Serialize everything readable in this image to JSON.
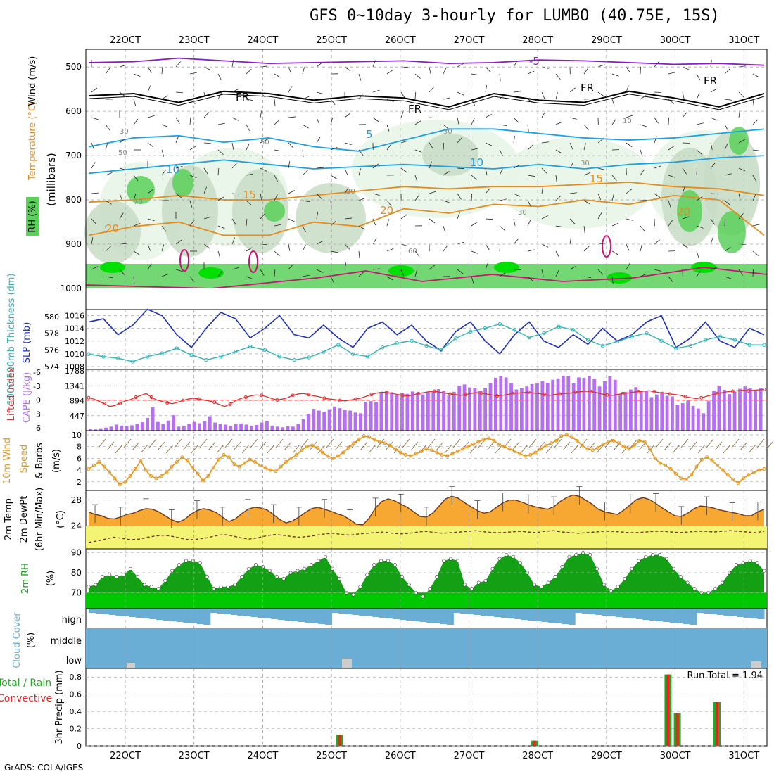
{
  "title": "GFS 0~10day 3-hourly for LUMBO (40.75E, 15S)",
  "credit": "GrADS: COLA/IGES",
  "colors": {
    "rh_light": "#e8f4e6",
    "rh_mid": "#c8dcc6",
    "rh_dark": "#a8bca8",
    "rh_green": "#5bd05b",
    "rh_bright": "#00e000",
    "temp_purple": "#8a19c8",
    "temp_blue": "#1aa0e6",
    "temp_orange": "#e68a1a",
    "temp_magenta": "#d0107a",
    "slp": "#1e2fc0",
    "thickness": "#30b4b4",
    "lifted": "#e03030",
    "cape": "#b56ff0",
    "wind": "#e6961e",
    "temp_fill": "#f6a832",
    "dew_fill": "#f4f474",
    "rh2m": "#14a014",
    "cloud": "#6aaed6",
    "rain": "#22aa22",
    "convective": "#ee2222"
  },
  "chart_data": [
    {
      "type": "heatmap",
      "panel": "upper_air",
      "ylabel": "(millibars)",
      "legend_labels": [
        "RH (%)",
        "Temperature (°C)",
        "Wind (m/s)"
      ],
      "yticks": [
        500,
        600,
        700,
        800,
        900,
        1000
      ],
      "x_ticks": [
        "22OCT",
        "23OCT",
        "24OCT",
        "25OCT",
        "26OCT",
        "27OCT",
        "28OCT",
        "29OCT",
        "30OCT",
        "31OCT"
      ],
      "contour_labels": [
        "-5",
        "FR",
        "FR",
        "FR",
        "FR",
        "5",
        "10",
        "10",
        "15",
        "15",
        "20",
        "20",
        "20"
      ],
      "rh_labels": [
        "30",
        "50",
        "50",
        "30",
        "30",
        "30",
        "70",
        "30",
        "60",
        "10"
      ],
      "isotherms": [
        {
          "name": "-5",
          "pressure": [
            490,
            488,
            480,
            486,
            492,
            490,
            488,
            486,
            492,
            490,
            484,
            486,
            490,
            494,
            492,
            496
          ]
        },
        {
          "name": "FR",
          "pressure": [
            565,
            560,
            580,
            555,
            560,
            575,
            565,
            570,
            590,
            560,
            575,
            580,
            555,
            570,
            590,
            560
          ]
        },
        {
          "name": "5",
          "pressure": [
            680,
            660,
            655,
            670,
            660,
            680,
            690,
            665,
            640,
            640,
            650,
            660,
            665,
            660,
            650,
            640
          ]
        },
        {
          "name": "10",
          "pressure": [
            740,
            730,
            720,
            710,
            720,
            730,
            725,
            720,
            725,
            730,
            720,
            730,
            720,
            715,
            705,
            700
          ]
        },
        {
          "name": "15",
          "pressure": [
            805,
            800,
            790,
            800,
            800,
            790,
            780,
            770,
            775,
            770,
            770,
            765,
            760,
            770,
            775,
            790
          ]
        },
        {
          "name": "20",
          "pressure": [
            880,
            860,
            850,
            880,
            880,
            850,
            860,
            820,
            830,
            810,
            815,
            800,
            810,
            790,
            800,
            880
          ]
        }
      ]
    },
    {
      "type": "line",
      "panel": "slp_thickness",
      "ylabel_left": "1000-500mb Thickness (dm)",
      "ylabel_right": "SLP (mb)",
      "y_left_ticks": [
        574,
        576,
        578,
        580
      ],
      "y_right_ticks": [
        1008,
        1010,
        1012,
        1014,
        1016
      ],
      "series": [
        {
          "name": "SLP (mb)",
          "axis": "right",
          "values": [
            1015,
            1015.5,
            1013,
            1014.5,
            1017,
            1016,
            1013,
            1011,
            1014,
            1016.5,
            1015.5,
            1012.5,
            1014,
            1016,
            1013,
            1012.5,
            1014.5,
            1012.5,
            1011,
            1014,
            1015,
            1013,
            1014.5,
            1012,
            1010.5,
            1013.5,
            1015,
            1012,
            1010,
            1013,
            1015,
            1012,
            1011,
            1013,
            1011.5,
            1014,
            1012,
            1013,
            1015,
            1016,
            1011,
            1012.5,
            1015,
            1012,
            1011,
            1014,
            1013
          ]
        },
        {
          "name": "Thickness (dm)",
          "axis": "left",
          "values": [
            575.5,
            575.2,
            575,
            574.6,
            575.2,
            575.6,
            576.2,
            575.4,
            574.8,
            575.2,
            575.8,
            576.4,
            576,
            575.2,
            574.8,
            575.1,
            575.8,
            576.6,
            575.5,
            575.2,
            576.3,
            576.8,
            577.1,
            576.5,
            576,
            577.4,
            578.2,
            578.6,
            579.1,
            578.4,
            577.5,
            578,
            578.8,
            578.4,
            577.2,
            576.5,
            577,
            577.6,
            578,
            577.1,
            576.2,
            576.5,
            577.2,
            577.6,
            577.2,
            576.6,
            576.6
          ]
        }
      ]
    },
    {
      "type": "bar",
      "panel": "cape_lifted",
      "ylabel_left": "Lifted Index",
      "ylabel_right": "CAPE (J/kg)",
      "y_left_ticks": [
        "-6",
        "-3",
        "0",
        "3",
        "6"
      ],
      "y_right_ticks": [
        447,
        894,
        1341,
        1788
      ],
      "series": [
        {
          "name": "CAPE (J/kg)",
          "values": [
            60,
            40,
            70,
            90,
            120,
            180,
            150,
            140,
            160,
            200,
            250,
            380,
            700,
            260,
            200,
            300,
            460,
            120,
            140,
            200,
            260,
            220,
            280,
            430,
            240,
            200,
            180,
            140,
            200,
            210,
            180,
            150,
            170,
            240,
            290,
            150,
            120,
            100,
            130,
            120,
            200,
            340,
            500,
            650,
            600,
            560,
            640,
            720,
            670,
            620,
            600,
            540,
            520,
            860,
            880,
            850,
            1120,
            1180,
            1150,
            1060,
            1120,
            1100,
            1170,
            1130,
            1080,
            1150,
            1190,
            1240,
            1180,
            1050,
            1160,
            1340,
            1380,
            1290,
            1280,
            1200,
            1280,
            1420,
            1580,
            1630,
            1590,
            1420,
            1230,
            1280,
            1320,
            1390,
            1420,
            1480,
            1430,
            1520,
            1560,
            1640,
            1630,
            1420,
            1590,
            1580,
            1640,
            1550,
            1320,
            1480,
            1620,
            1520,
            1100,
            1160,
            1230,
            1300,
            1200,
            1180,
            1000,
            1080,
            1160,
            1040,
            1020,
            760,
            820,
            900,
            740,
            660,
            520,
            880,
            1200,
            1340,
            1220,
            1090,
            1160,
            1250,
            1320,
            1260,
            1180,
            1260
          ]
        },
        {
          "name": "Lifted Index",
          "values": [
            -0.5,
            -0.2,
            0.3,
            0.8,
            1.4,
            1.2,
            0.7,
            0.2,
            -0.1,
            -0.6,
            -1,
            -1.4,
            -0.6,
            0,
            0.3,
            0.6,
            0.8,
            0.5,
            0.1,
            -0.2,
            -0.4,
            -0.2,
            0,
            0.2,
            0.5,
            1,
            1.4,
            0.9,
            0.2,
            -0.3,
            -0.6,
            -0.9,
            -1.1,
            -1,
            -0.7,
            -0.3,
            0,
            -0.2,
            -0.5,
            -1,
            -1.3,
            -1.4,
            -1.2,
            -0.9,
            -0.7,
            -0.4,
            -0.2,
            -0.1,
            0.1,
            0.2,
            0,
            -0.2,
            -0.4,
            -0.8,
            -1.2,
            -1.5,
            -1.7,
            -1.6,
            -1.4,
            -1.2,
            -1,
            -0.9,
            -1.1,
            -1.4,
            -1.6,
            -1.8,
            -1.9,
            -1.7,
            -1.5,
            -1.3,
            -1.2,
            -1,
            -1.2,
            -1.4,
            -1.6,
            -1.5,
            -1.3,
            -1.1,
            -0.9,
            -1,
            -1.2,
            -1.4,
            -1.5,
            -1.6,
            -1.7,
            -1.5,
            -1.4,
            -1.2,
            -1,
            -1.2,
            -1.3,
            -1.4,
            -1.5,
            -1.7,
            -1.8,
            -1.9,
            -1.8,
            -1.6,
            -1.3,
            -1.1,
            -1,
            -1.2,
            -1.4,
            -1.5,
            -1.7,
            -1.8,
            -1.9,
            -2,
            -1.8,
            -1.6,
            -1.5,
            -1.3,
            -1.2,
            -1,
            -0.7,
            -0.5,
            -0.3,
            -0.5,
            -0.8,
            -1.1,
            -1.4,
            -1.6,
            -1.8,
            -1.9,
            -2,
            -2.1,
            -2,
            -2.1,
            -2.2,
            -2.3
          ]
        }
      ]
    },
    {
      "type": "line",
      "panel": "wind10m",
      "ylabel": "10m Wind Speed & Barbs (m/s)",
      "y_ticks": [
        2,
        4,
        6,
        8,
        10
      ],
      "series": [
        {
          "name": "10m Wind Speed (m/s)",
          "values": [
            4.2,
            4.8,
            5.4,
            4.6,
            3.6,
            2.6,
            1.6,
            2,
            3,
            4.2,
            5.6,
            4,
            3,
            2.6,
            3,
            3.6,
            4.6,
            5.4,
            6.2,
            5.6,
            4.4,
            3.4,
            2.2,
            3,
            4.4,
            5.8,
            6.6,
            6.2,
            5,
            4.6,
            5.2,
            5.8,
            5.4,
            4.8,
            4.4,
            4,
            3.8,
            4.6,
            5.4,
            6,
            6.6,
            7.4,
            8,
            8.2,
            7.8,
            7,
            6.4,
            6,
            6.4,
            7,
            7.8,
            8.6,
            9.2,
            9.8,
            9.6,
            9.2,
            8.8,
            8.6,
            8.2,
            7.6,
            7,
            6.6,
            6.4,
            6.8,
            7.2,
            7.6,
            7.4,
            7,
            6.6,
            6.4,
            6.8,
            7.2,
            7.6,
            8,
            8.4,
            8.8,
            9.2,
            9.4,
            9,
            8.4,
            8,
            7.6,
            7.2,
            6.8,
            6.4,
            6.6,
            7,
            7.6,
            8.2,
            8.6,
            9,
            9.8,
            10,
            9.6,
            9,
            8.2,
            7.6,
            7.4,
            7.8,
            8.4,
            8.8,
            9,
            8.6,
            8,
            7.6,
            8.2,
            9,
            8.8,
            7.6,
            6,
            5.2,
            4.8,
            4.2,
            3.4,
            2.6,
            2.4,
            3.2,
            4.6,
            5.8,
            6.2,
            5.6,
            4.8,
            4,
            3.2,
            2.4,
            1.8,
            2.6,
            3.2,
            3.6,
            4,
            4.2
          ]
        }
      ]
    },
    {
      "type": "area",
      "panel": "temp2m",
      "ylabel": "2m Temp 2m DewPt (6hr Min/Max) (°C)",
      "y_ticks": [
        24,
        28
      ],
      "series": [
        {
          "name": "2m Temp (°C)",
          "values": [
            26.2,
            25.8,
            25.6,
            25.2,
            25.1,
            25.4,
            25.8,
            26,
            26.4,
            26.7,
            26.6,
            26.2,
            25.6,
            25,
            24.6,
            25,
            25.8,
            26.4,
            26.7,
            26.5,
            26.1,
            25.4,
            24.7,
            25.1,
            25.9,
            26.6,
            26.9,
            26.8,
            26.5,
            25.8,
            25,
            24.5,
            24.8,
            25.4,
            26.1,
            26.7,
            26.9,
            26.6,
            26.3,
            25.9,
            25.6,
            25,
            24.3,
            24.2,
            25.2,
            26.8,
            27.8,
            28.2,
            27.9,
            27.4,
            26.9,
            26.2,
            25.5,
            25.4,
            26,
            27.1,
            28.2,
            28.6,
            28.3,
            27.6,
            27,
            26.4,
            26,
            26.2,
            26.9,
            27.6,
            28,
            28,
            27.7,
            27.3,
            27,
            26.8,
            26.6,
            27,
            27.8,
            28.4,
            28.8,
            28.6,
            28,
            27.4,
            26.6,
            26.2,
            26,
            25.8,
            26.5,
            27.3,
            28.1,
            28.4,
            28.1,
            27.5,
            26.8,
            26.2,
            25.6,
            25.5,
            26,
            26.7,
            27.1,
            27,
            26.8,
            26.5,
            26.3,
            26.1,
            25.9,
            25.6,
            25.6,
            26.2,
            26.6
          ]
        },
        {
          "name": "2m DewPt (°C)",
          "values": [
            21.5,
            21.7,
            22,
            22.3,
            22.1,
            21.9,
            22,
            22.3,
            22.5,
            22.6,
            22.4,
            22.1,
            21.9,
            22,
            22.2,
            22.5,
            22.7,
            22.5,
            22.2,
            22,
            22.2,
            22.5,
            22.7,
            22.6,
            22.4,
            22.3,
            22.4,
            22.6,
            22.8,
            22.9,
            22.7,
            22.6,
            22.8,
            22.9,
            23,
            23.1,
            22.9,
            22.8,
            22.9,
            23.1,
            23.2,
            23,
            22.9,
            23,
            23.1,
            23.2,
            23.3,
            23.1,
            23,
            23,
            23.1,
            23.2,
            23.1,
            23,
            23.2,
            23.3,
            23.1,
            23,
            22.9,
            23,
            23.1,
            23.2,
            23.2,
            23.1,
            23,
            23,
            23.1,
            23.2,
            23.2,
            23.1,
            23,
            23.1,
            23.2,
            23.2,
            23.1,
            23.2,
            23.3,
            23.2,
            23.1,
            23,
            23.2
          ]
        }
      ]
    },
    {
      "type": "area",
      "panel": "rh2m",
      "ylabel": "2m RH (%)",
      "y_ticks": [
        70,
        80,
        90
      ],
      "series": [
        {
          "name": "2m RH (%)",
          "values": [
            73,
            74,
            78,
            79,
            78,
            79,
            82,
            78,
            74,
            73,
            72,
            76,
            81,
            84,
            86,
            86,
            85,
            78,
            72,
            73,
            73,
            74,
            78,
            82,
            84,
            83,
            81,
            78,
            77,
            80,
            81,
            82,
            84,
            86,
            88,
            82,
            77,
            70,
            69,
            73,
            79,
            84,
            86,
            86,
            84,
            78,
            74,
            70,
            68,
            72,
            78,
            86,
            87,
            86,
            74,
            72,
            75,
            76,
            82,
            87,
            89,
            88,
            85,
            80,
            74,
            73,
            75,
            78,
            83,
            88,
            89,
            90,
            89,
            82,
            74,
            71,
            73,
            77,
            82,
            86,
            88,
            89,
            89,
            87,
            82,
            78,
            75,
            72,
            70,
            70,
            72,
            75,
            80,
            84,
            85,
            86,
            85,
            81
          ]
        }
      ]
    },
    {
      "type": "bar",
      "panel": "cloud_cover",
      "ylabel": "Cloud Cover (%)",
      "y_ticks": [
        "high",
        "middle",
        "low"
      ]
    },
    {
      "type": "bar",
      "panel": "precip",
      "ylabel": "3hr Precip (mm)",
      "ylabel_extra": [
        "Total / Rain",
        "Convective"
      ],
      "y_ticks": [
        0,
        0.2,
        0.4,
        0.6,
        0.8
      ],
      "annotation": "Run Total = 1.94",
      "bars": [
        {
          "x_index": 29.3,
          "value": 0.13
        },
        {
          "x_index": 52.4,
          "value": 0.06
        },
        {
          "x_index": 68.2,
          "value": 0.83
        },
        {
          "x_index": 69.3,
          "value": 0.38
        },
        {
          "x_index": 74.0,
          "value": 0.51
        }
      ]
    }
  ]
}
